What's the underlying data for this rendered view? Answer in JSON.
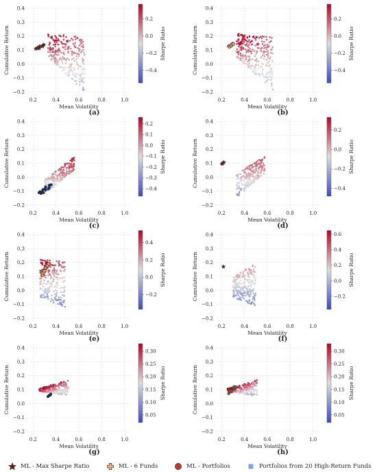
{
  "colors": {
    "star_fill": "#6b1c1c",
    "plus_fill": "#e8b27a",
    "circle_fill": "#c0392b",
    "square_fill": "#7fa3e0",
    "cmap_low": "#3b4cc0",
    "cmap_mid": "#dddddd",
    "cmap_high": "#b40426"
  },
  "legend": {
    "items": [
      {
        "label": "ML - Max Sharpe Ratio",
        "icon": "star-icon"
      },
      {
        "label": "ML - 6 Funds",
        "icon": "plus-icon"
      },
      {
        "label": "ML - Portfolios",
        "icon": "circle-icon"
      },
      {
        "label": "Portfolios from 20 High-Return Funds",
        "icon": "square-icon"
      }
    ]
  },
  "chart_data": [
    {
      "type": "scatter",
      "panel": "(a)",
      "xlabel": "Mean Volatility",
      "ylabel": "Cumulative Return",
      "colorbar_label": "Sharpe Ratio",
      "xlim": [
        0.15,
        1.05
      ],
      "ylim": [
        -0.22,
        0.42
      ],
      "xticks": [
        "0.2",
        "0.4",
        "0.6",
        "0.8",
        "1.0"
      ],
      "yticks": [
        "−0.2",
        "−0.1",
        "0.0",
        "0.1",
        "0.2",
        "0.3",
        "0.4"
      ],
      "colorbar_ticks": [
        "−0.4",
        "−0.2",
        "0.0",
        "0.2"
      ],
      "colorbar_range": [
        -0.55,
        0.37
      ],
      "cloud": {
        "x": [
          0.33,
          0.65
        ],
        "upper": [
          0.22,
          0.19
        ],
        "lower": [
          0.05,
          -0.2
        ],
        "count": 280
      },
      "ml_points": {
        "marker": "star",
        "x": [
          0.22,
          0.3
        ],
        "y": [
          0.1,
          0.14
        ],
        "count": 8
      }
    },
    {
      "type": "scatter",
      "panel": "(b)",
      "xlabel": "Mean Volatility",
      "ylabel": "Cumulative Return",
      "colorbar_label": "Sharpe Ratio",
      "xlim": [
        0.15,
        1.05
      ],
      "ylim": [
        -0.22,
        0.42
      ],
      "xticks": [
        "0.2",
        "0.4",
        "0.6",
        "0.8",
        "1.0"
      ],
      "yticks": [
        "−0.2",
        "−0.1",
        "0.0",
        "0.1",
        "0.2",
        "0.3",
        "0.4"
      ],
      "colorbar_ticks": [
        "−0.4",
        "−0.2",
        "0.0",
        "0.2"
      ],
      "colorbar_range": [
        -0.55,
        0.37
      ],
      "cloud": {
        "x": [
          0.33,
          0.65
        ],
        "upper": [
          0.22,
          0.19
        ],
        "lower": [
          0.05,
          -0.2
        ],
        "count": 280
      },
      "ml_points": {
        "marker": "plus",
        "x": [
          0.26,
          0.31
        ],
        "y": [
          0.12,
          0.15
        ],
        "count": 6
      }
    },
    {
      "type": "scatter",
      "panel": "(c)",
      "xlabel": "Mean Volatility",
      "ylabel": "Cumulative Return",
      "colorbar_label": "Sharpe Ratio",
      "xlim": [
        0.15,
        1.05
      ],
      "ylim": [
        -0.22,
        0.42
      ],
      "xticks": [
        "0.2",
        "0.4",
        "0.6",
        "0.8",
        "1.0"
      ],
      "yticks": [
        "−0.2",
        "−0.1",
        "0.0",
        "0.1",
        "0.2",
        "0.3",
        "0.4"
      ],
      "colorbar_ticks": [
        "−0.4",
        "−0.3",
        "−0.2",
        "−0.1",
        "0.0",
        "0.1",
        "0.2"
      ],
      "colorbar_range": [
        -0.47,
        0.26
      ],
      "cloud": {
        "x": [
          0.3,
          0.56
        ],
        "upper": [
          -0.02,
          0.15
        ],
        "lower": [
          -0.12,
          0.05
        ],
        "count": 230
      },
      "ml_points": {
        "marker": "circle",
        "x": [
          0.24,
          0.36
        ],
        "y": [
          -0.13,
          -0.05
        ],
        "count": 14
      }
    },
    {
      "type": "scatter",
      "panel": "(d)",
      "xlabel": "Mean Volatility",
      "ylabel": "Cumulative Return",
      "colorbar_label": "Sharpe Ratio",
      "xlim": [
        0.15,
        1.05
      ],
      "ylim": [
        -0.22,
        0.42
      ],
      "xticks": [
        "0.2",
        "0.4",
        "0.6",
        "0.8",
        "1.0"
      ],
      "yticks": [
        "−0.2",
        "−0.1",
        "0.0",
        "0.1",
        "0.2",
        "0.3",
        "0.4"
      ],
      "colorbar_ticks": [
        "−0.4",
        "−0.2",
        "0.0",
        "0.2"
      ],
      "colorbar_range": [
        -0.48,
        0.33
      ],
      "cloud": {
        "x": [
          0.33,
          0.58
        ],
        "upper": [
          0.03,
          0.15
        ],
        "lower": [
          -0.15,
          0.03
        ],
        "count": 230
      },
      "ml_points": {
        "marker": "star",
        "x": [
          0.2,
          0.22
        ],
        "y": [
          0.09,
          0.11
        ],
        "count": 3
      }
    },
    {
      "type": "scatter",
      "panel": "(e)",
      "xlabel": "Mean Volatility",
      "ylabel": "Cumulative Return",
      "colorbar_label": "Sharpe Ratio",
      "xlim": [
        0.15,
        1.05
      ],
      "ylim": [
        -0.22,
        0.42
      ],
      "xticks": [
        "0.2",
        "0.4",
        "0.6",
        "0.8",
        "1.0"
      ],
      "yticks": [
        "−0.2",
        "−0.1",
        "0.0",
        "0.1",
        "0.2",
        "0.3",
        "0.4"
      ],
      "colorbar_ticks": [
        "−0.2",
        "0.0",
        "0.2",
        "0.4"
      ],
      "colorbar_range": [
        -0.37,
        0.54
      ],
      "cloud": {
        "x": [
          0.26,
          0.48
        ],
        "upper": [
          0.23,
          0.21
        ],
        "lower": [
          -0.05,
          -0.12
        ],
        "count": 240
      },
      "ml_points": {
        "marker": "plus",
        "x": [
          0.27,
          0.34
        ],
        "y": [
          0.11,
          0.2
        ],
        "count": 14
      }
    },
    {
      "type": "scatter",
      "panel": "(f)",
      "xlabel": "Mean Volatility",
      "ylabel": "Cumulative Return",
      "colorbar_label": "Sharpe Ratio",
      "xlim": [
        0.15,
        1.05
      ],
      "ylim": [
        -0.22,
        0.42
      ],
      "xticks": [
        "0.2",
        "0.4",
        "0.6",
        "0.8",
        "1.0"
      ],
      "yticks": [
        "−0.2",
        "−0.1",
        "0.0",
        "0.1",
        "0.2",
        "0.3",
        "0.4"
      ],
      "colorbar_ticks": [
        "−0.2",
        "0.0",
        "0.2",
        "0.4",
        "0.6"
      ],
      "colorbar_range": [
        -0.37,
        0.65
      ],
      "cloud": {
        "x": [
          0.3,
          0.5
        ],
        "upper": [
          0.1,
          0.2
        ],
        "lower": [
          -0.05,
          -0.12
        ],
        "count": 240
      },
      "ml_points": {
        "marker": "star",
        "x": [
          0.21,
          0.22
        ],
        "y": [
          0.17,
          0.17
        ],
        "count": 1
      }
    },
    {
      "type": "scatter",
      "panel": "(g)",
      "xlabel": "Mean Volatility",
      "ylabel": "Cumulative Return",
      "colorbar_label": "Sharpe Ratio",
      "xlim": [
        0.15,
        1.05
      ],
      "ylim": [
        -0.22,
        0.42
      ],
      "xticks": [
        "0.2",
        "0.4",
        "0.6",
        "0.8",
        "1.0"
      ],
      "yticks": [
        "−0.2",
        "−0.1",
        "0.0",
        "0.1",
        "0.2",
        "0.3",
        "0.4"
      ],
      "colorbar_ticks": [
        "0.05",
        "0.10",
        "0.15",
        "0.20",
        "0.25",
        "0.30"
      ],
      "colorbar_range": [
        0.02,
        0.33
      ],
      "cloud": {
        "x": [
          0.25,
          0.51
        ],
        "upper": [
          0.11,
          0.17
        ],
        "lower": [
          0.09,
          0.05
        ],
        "count": 200
      },
      "ml_points": {
        "marker": "circle",
        "x": [
          0.33,
          0.36
        ],
        "y": [
          0.05,
          0.07
        ],
        "count": 6
      }
    },
    {
      "type": "scatter",
      "panel": "(h)",
      "xlabel": "Mean Volatility",
      "ylabel": "Cumulative Return",
      "colorbar_label": "Sharpe Ratio",
      "xlim": [
        0.15,
        1.05
      ],
      "ylim": [
        -0.22,
        0.42
      ],
      "xticks": [
        "0.2",
        "0.4",
        "0.6",
        "0.8",
        "1.0"
      ],
      "yticks": [
        "−0.2",
        "−0.1",
        "0.0",
        "0.1",
        "0.2",
        "0.3",
        "0.4"
      ],
      "colorbar_ticks": [
        "0.05",
        "0.10",
        "0.15",
        "0.20",
        "0.25",
        "0.30"
      ],
      "colorbar_range": [
        0.02,
        0.33
      ],
      "cloud": {
        "x": [
          0.25,
          0.51
        ],
        "upper": [
          0.11,
          0.17
        ],
        "lower": [
          0.09,
          0.05
        ],
        "count": 200
      },
      "ml_points": {
        "marker": "circle",
        "x": [
          0.26,
          0.33
        ],
        "y": [
          0.07,
          0.13
        ],
        "count": 14
      }
    }
  ]
}
